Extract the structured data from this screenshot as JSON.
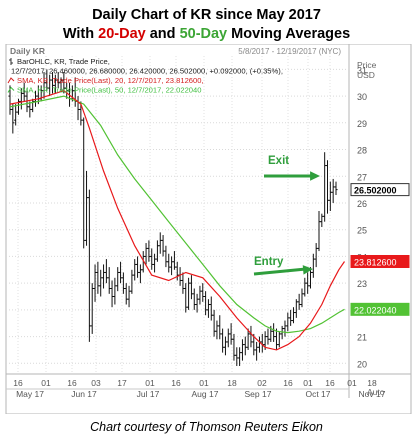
{
  "header": {
    "title_lead": "Daily Chart of KR since May 2017",
    "title_with": "With ",
    "title_20": "20-Day",
    "title_and": " and ",
    "title_50": "50-Day",
    "title_tail": " Moving Averages"
  },
  "chart_panel": {
    "name": "Daily KR",
    "date_range": "5/8/2017 - 12/19/2017 (NYC)",
    "price_label": "Price",
    "currency": "USD",
    "scale_mode": "Auto",
    "legend": [
      {
        "text": "BarOHLC, KR, Trade Price,",
        "color": "#222222",
        "icon": "bar-ohlc-icon"
      },
      {
        "text": "12/7/2017, 26.460000, 26.680000, 26.420000, 26.502000, +0.092000, (+0.35%),",
        "color": "#222222",
        "icon": ""
      },
      {
        "text": "SMA, KR, Trade Price(Last), 20, 12/7/2017, 23.812600,",
        "color": "#d42020",
        "icon": "sma-line-icon"
      },
      {
        "text": "SMA, KR, Trade Price(Last), 50, 12/7/2017, 22.022040",
        "color": "#3fbf3f",
        "icon": "sma-line-icon"
      }
    ],
    "annotations": {
      "exit": "Exit",
      "entry": "Entry"
    },
    "colors": {
      "bar": "#111111",
      "sma20": "#e8191b",
      "sma50": "#52c234",
      "arrow": "#2f9e3c",
      "last_price_bg": "#ffffff",
      "sma20_bg": "#e8191b",
      "sma50_bg": "#52c234"
    }
  },
  "chart_data": {
    "type": "ohlc_bar",
    "title": "Daily Chart of KR since May 2017",
    "ylim": [
      19.6,
      31.5
    ],
    "yticks": [
      20,
      21,
      22,
      23,
      24,
      25,
      26,
      27,
      28,
      29,
      30,
      31
    ],
    "ylabel": "Price USD",
    "x_day_ticks": [
      "16",
      "01",
      "16",
      "03",
      "17",
      "01",
      "16",
      "01",
      "18",
      "02",
      "16",
      "01",
      "16",
      "01",
      "18"
    ],
    "x_months": [
      "May 17",
      "Jun 17",
      "Jul 17",
      "Aug 17",
      "Sep 17",
      "Oct 17",
      "Nov 17"
    ],
    "last_values": {
      "price": "26.502000",
      "sma20": "23.812600",
      "sma50": "22.022040"
    },
    "bars": [
      [
        30.0,
        30.4,
        29.3,
        29.5
      ],
      [
        29.5,
        29.7,
        28.6,
        29.0
      ],
      [
        29.1,
        29.7,
        28.9,
        29.4
      ],
      [
        29.4,
        29.9,
        29.3,
        29.8
      ],
      [
        29.8,
        30.3,
        29.5,
        30.1
      ],
      [
        30.1,
        30.5,
        29.8,
        30.0
      ],
      [
        30.0,
        30.2,
        29.4,
        29.6
      ],
      [
        29.6,
        29.8,
        29.2,
        29.5
      ],
      [
        29.5,
        29.9,
        29.4,
        29.8
      ],
      [
        29.8,
        30.2,
        29.6,
        30.0
      ],
      [
        30.0,
        30.4,
        29.7,
        29.9
      ],
      [
        29.9,
        30.4,
        29.8,
        30.2
      ],
      [
        30.2,
        30.9,
        29.9,
        30.5
      ],
      [
        30.5,
        31.0,
        30.2,
        30.3
      ],
      [
        30.3,
        30.8,
        30.0,
        30.6
      ],
      [
        30.6,
        30.9,
        30.1,
        30.4
      ],
      [
        30.4,
        30.8,
        30.1,
        30.6
      ],
      [
        30.6,
        30.9,
        30.3,
        30.5
      ],
      [
        30.5,
        30.7,
        30.2,
        30.6
      ],
      [
        30.6,
        30.9,
        30.1,
        30.3
      ],
      [
        30.3,
        30.5,
        29.9,
        30.2
      ],
      [
        30.2,
        30.5,
        29.6,
        29.9
      ],
      [
        29.9,
        30.4,
        29.8,
        30.2
      ],
      [
        30.2,
        30.7,
        29.6,
        29.8
      ],
      [
        29.8,
        30.0,
        29.1,
        29.5
      ],
      [
        29.5,
        29.8,
        28.9,
        29.1
      ],
      [
        29.1,
        29.2,
        24.3,
        24.6
      ],
      [
        24.6,
        27.2,
        24.4,
        26.2
      ],
      [
        26.2,
        26.5,
        20.8,
        21.4
      ],
      [
        21.4,
        23.0,
        21.1,
        22.8
      ],
      [
        22.8,
        23.7,
        22.3,
        23.4
      ],
      [
        23.4,
        23.8,
        22.6,
        22.9
      ],
      [
        22.9,
        23.5,
        22.5,
        23.2
      ],
      [
        23.2,
        23.7,
        22.8,
        23.4
      ],
      [
        23.4,
        23.9,
        23.0,
        23.2
      ],
      [
        23.2,
        23.6,
        22.6,
        22.8
      ],
      [
        22.8,
        23.1,
        22.1,
        22.5
      ],
      [
        22.5,
        23.2,
        22.2,
        22.9
      ],
      [
        22.9,
        23.6,
        22.7,
        23.4
      ],
      [
        23.4,
        23.8,
        23.0,
        23.2
      ],
      [
        23.2,
        23.4,
        22.6,
        22.8
      ],
      [
        22.8,
        23.0,
        22.2,
        22.4
      ],
      [
        22.4,
        22.9,
        22.1,
        22.7
      ],
      [
        22.7,
        23.5,
        22.6,
        23.3
      ],
      [
        23.3,
        23.9,
        23.1,
        23.7
      ],
      [
        23.7,
        24.0,
        23.2,
        23.4
      ],
      [
        23.4,
        23.7,
        23.0,
        23.5
      ],
      [
        23.5,
        24.2,
        23.4,
        24.0
      ],
      [
        24.0,
        24.5,
        23.7,
        24.3
      ],
      [
        24.3,
        24.6,
        23.8,
        24.0
      ],
      [
        24.0,
        24.3,
        23.5,
        23.7
      ],
      [
        23.7,
        24.1,
        23.4,
        23.9
      ],
      [
        23.9,
        24.6,
        23.8,
        24.4
      ],
      [
        24.4,
        24.9,
        24.1,
        24.6
      ],
      [
        24.6,
        24.8,
        24.0,
        24.2
      ],
      [
        24.2,
        24.4,
        23.6,
        23.8
      ],
      [
        23.8,
        24.1,
        23.4,
        23.6
      ],
      [
        23.6,
        24.0,
        23.3,
        23.8
      ],
      [
        23.8,
        24.2,
        23.5,
        23.6
      ],
      [
        23.6,
        23.8,
        23.1,
        23.3
      ],
      [
        23.3,
        23.6,
        22.9,
        23.1
      ],
      [
        23.1,
        23.4,
        22.6,
        22.8
      ],
      [
        22.8,
        23.0,
        21.9,
        22.1
      ],
      [
        22.1,
        23.2,
        22.0,
        23.0
      ],
      [
        23.0,
        23.3,
        22.4,
        22.6
      ],
      [
        22.6,
        22.8,
        22.0,
        22.2
      ],
      [
        22.2,
        22.6,
        21.9,
        22.4
      ],
      [
        22.4,
        22.9,
        22.2,
        22.7
      ],
      [
        22.7,
        23.0,
        22.3,
        22.5
      ],
      [
        22.5,
        22.7,
        21.8,
        22.0
      ],
      [
        22.0,
        22.4,
        21.7,
        22.2
      ],
      [
        22.2,
        22.5,
        21.6,
        21.8
      ],
      [
        21.8,
        22.0,
        21.0,
        21.2
      ],
      [
        21.2,
        21.6,
        20.9,
        21.4
      ],
      [
        21.4,
        21.8,
        20.9,
        21.1
      ],
      [
        21.1,
        21.3,
        20.4,
        20.6
      ],
      [
        20.6,
        21.0,
        20.3,
        20.8
      ],
      [
        20.8,
        21.3,
        20.6,
        21.1
      ],
      [
        21.1,
        21.5,
        20.7,
        20.9
      ],
      [
        20.9,
        21.1,
        20.1,
        20.3
      ],
      [
        20.3,
        20.6,
        19.9,
        20.2
      ],
      [
        20.2,
        20.6,
        19.9,
        20.4
      ],
      [
        20.4,
        20.9,
        20.1,
        20.7
      ],
      [
        20.7,
        21.0,
        20.3,
        20.6
      ],
      [
        20.6,
        21.3,
        20.5,
        21.1
      ],
      [
        21.1,
        21.4,
        20.6,
        20.8
      ],
      [
        20.8,
        21.1,
        20.3,
        20.5
      ],
      [
        20.5,
        20.8,
        20.1,
        20.6
      ],
      [
        20.6,
        21.0,
        20.4,
        20.8
      ],
      [
        20.8,
        21.1,
        20.4,
        20.7
      ],
      [
        20.7,
        21.2,
        20.5,
        21.0
      ],
      [
        21.0,
        21.3,
        20.7,
        20.9
      ],
      [
        20.9,
        21.4,
        20.8,
        21.2
      ],
      [
        21.2,
        21.5,
        20.8,
        21.0
      ],
      [
        21.0,
        21.3,
        20.5,
        20.7
      ],
      [
        20.7,
        21.2,
        20.6,
        21.1
      ],
      [
        21.1,
        21.4,
        20.9,
        21.3
      ],
      [
        21.3,
        21.6,
        21.0,
        21.4
      ],
      [
        21.4,
        21.9,
        21.2,
        21.7
      ],
      [
        21.7,
        22.0,
        21.4,
        21.6
      ],
      [
        21.6,
        22.1,
        21.5,
        21.9
      ],
      [
        21.9,
        22.4,
        21.7,
        22.3
      ],
      [
        22.3,
        22.6,
        22.0,
        22.2
      ],
      [
        22.2,
        22.8,
        22.1,
        22.6
      ],
      [
        22.6,
        23.2,
        22.5,
        23.0
      ],
      [
        23.0,
        23.4,
        22.6,
        22.9
      ],
      [
        22.9,
        23.6,
        22.8,
        23.4
      ],
      [
        23.4,
        24.1,
        23.2,
        23.9
      ],
      [
        23.9,
        24.5,
        23.6,
        24.3
      ],
      [
        24.3,
        25.7,
        24.2,
        25.3
      ],
      [
        25.3,
        25.6,
        25.1,
        25.5
      ],
      [
        25.5,
        27.9,
        25.3,
        27.4
      ],
      [
        27.4,
        27.6,
        25.6,
        26.1
      ],
      [
        26.1,
        26.8,
        25.7,
        26.4
      ],
      [
        26.4,
        26.9,
        26.0,
        26.6
      ],
      [
        26.6,
        26.8,
        26.3,
        26.5
      ]
    ],
    "sma20": [
      [
        0,
        29.7
      ],
      [
        10,
        29.9
      ],
      [
        19,
        30.2
      ],
      [
        25,
        29.7
      ],
      [
        28,
        28.8
      ],
      [
        33,
        27.2
      ],
      [
        38,
        25.8
      ],
      [
        44,
        24.4
      ],
      [
        50,
        23.3
      ],
      [
        56,
        23.1
      ],
      [
        62,
        23.4
      ],
      [
        68,
        23.2
      ],
      [
        74,
        22.5
      ],
      [
        80,
        21.7
      ],
      [
        86,
        21.0
      ],
      [
        90,
        20.6
      ],
      [
        94,
        20.5
      ],
      [
        98,
        20.7
      ],
      [
        102,
        21.0
      ],
      [
        106,
        21.5
      ],
      [
        110,
        22.2
      ],
      [
        113,
        22.9
      ],
      [
        116,
        23.5
      ],
      [
        118,
        23.81
      ]
    ],
    "sma50": [
      [
        0,
        29.6
      ],
      [
        10,
        29.8
      ],
      [
        19,
        30.0
      ],
      [
        26,
        29.7
      ],
      [
        32,
        28.9
      ],
      [
        38,
        27.8
      ],
      [
        44,
        26.9
      ],
      [
        50,
        26.1
      ],
      [
        56,
        25.3
      ],
      [
        62,
        24.5
      ],
      [
        68,
        23.7
      ],
      [
        74,
        22.9
      ],
      [
        80,
        22.2
      ],
      [
        86,
        21.7
      ],
      [
        90,
        21.4
      ],
      [
        94,
        21.2
      ],
      [
        98,
        21.15
      ],
      [
        102,
        21.2
      ],
      [
        106,
        21.3
      ],
      [
        110,
        21.5
      ],
      [
        113,
        21.7
      ],
      [
        116,
        21.9
      ],
      [
        118,
        22.02
      ]
    ]
  },
  "footer": {
    "caption": "Chart courtesy of Thomson Reuters Eikon"
  }
}
